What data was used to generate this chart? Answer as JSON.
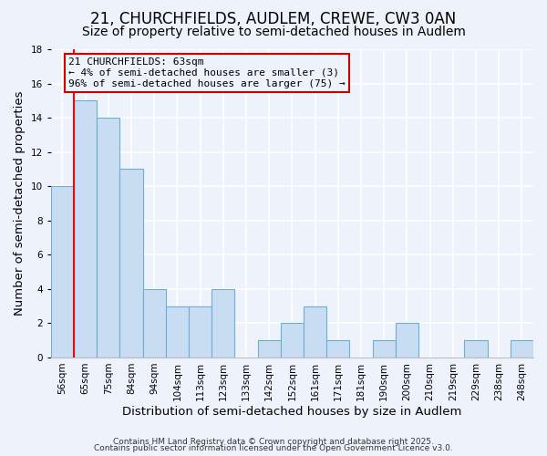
{
  "title": "21, CHURCHFIELDS, AUDLEM, CREWE, CW3 0AN",
  "subtitle": "Size of property relative to semi-detached houses in Audlem",
  "xlabel": "Distribution of semi-detached houses by size in Audlem",
  "ylabel": "Number of semi-detached properties",
  "categories": [
    "56sqm",
    "65sqm",
    "75sqm",
    "84sqm",
    "94sqm",
    "104sqm",
    "113sqm",
    "123sqm",
    "133sqm",
    "142sqm",
    "152sqm",
    "161sqm",
    "171sqm",
    "181sqm",
    "190sqm",
    "200sqm",
    "210sqm",
    "219sqm",
    "229sqm",
    "238sqm",
    "248sqm"
  ],
  "values": [
    10,
    15,
    14,
    11,
    4,
    3,
    3,
    4,
    0,
    1,
    2,
    3,
    1,
    0,
    1,
    2,
    0,
    0,
    1,
    0,
    1
  ],
  "bar_color": "#c9ddf2",
  "bar_edge_color": "#6baed6",
  "red_line_index": 0,
  "annotation_title": "21 CHURCHFIELDS: 63sqm",
  "annotation_line1": "← 4% of semi-detached houses are smaller (3)",
  "annotation_line2": "96% of semi-detached houses are larger (75) →",
  "annotation_box_edge": "#cc0000",
  "ylim": [
    0,
    18
  ],
  "yticks": [
    0,
    2,
    4,
    6,
    8,
    10,
    12,
    14,
    16,
    18
  ],
  "footer1": "Contains HM Land Registry data © Crown copyright and database right 2025.",
  "footer2": "Contains public sector information licensed under the Open Government Licence v3.0.",
  "background_color": "#eef3fb",
  "grid_color": "#ffffff",
  "title_fontsize": 12,
  "subtitle_fontsize": 10,
  "tick_fontsize": 7.5,
  "label_fontsize": 9.5,
  "footer_fontsize": 6.5
}
